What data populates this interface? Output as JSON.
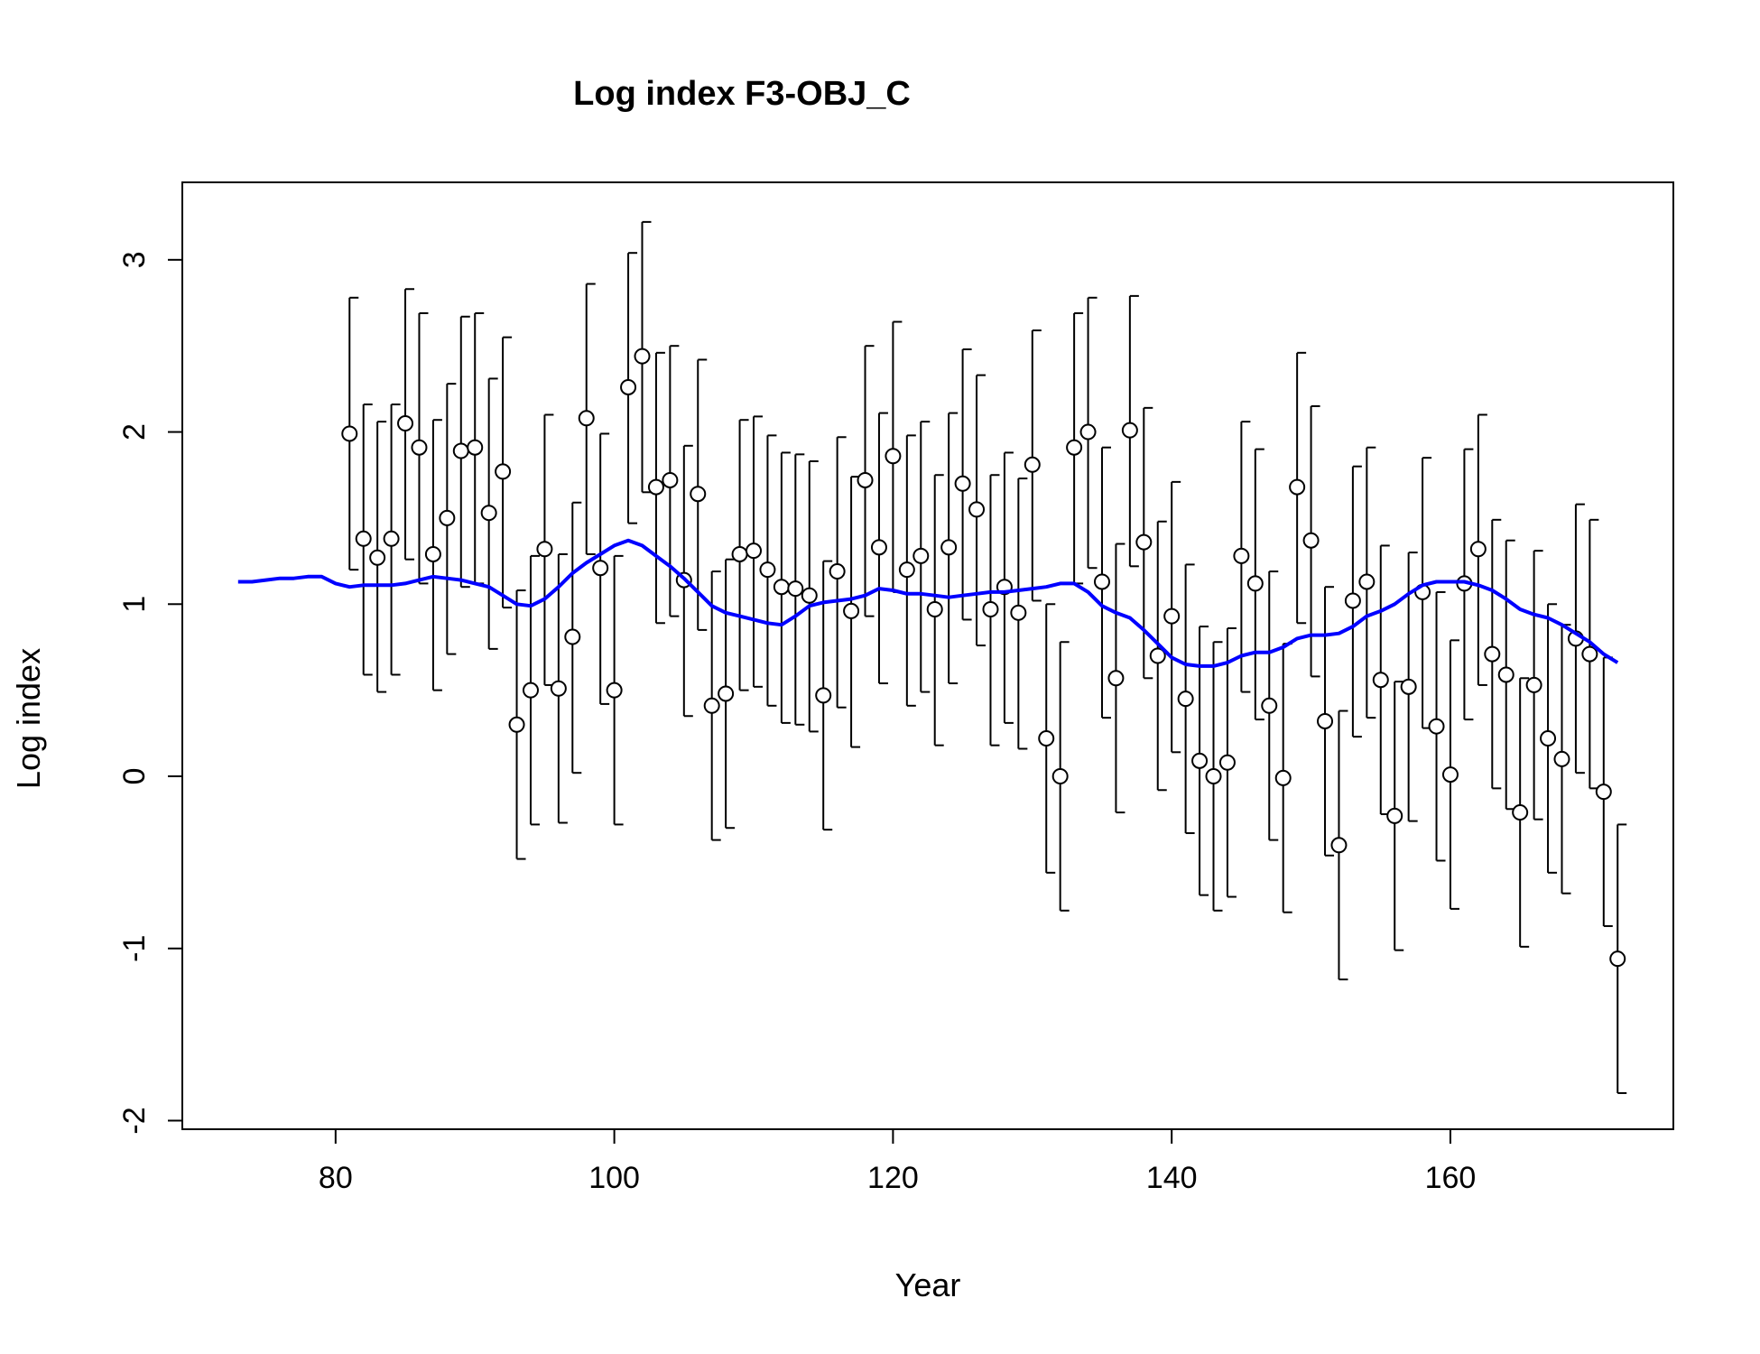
{
  "chart_data": {
    "type": "scatter",
    "title": "Log index F3-OBJ_C",
    "xlabel": "Year",
    "ylabel": "Log index",
    "xlim": [
      69,
      176
    ],
    "ylim": [
      -2.05,
      3.45
    ],
    "xticks": [
      80,
      100,
      120,
      140,
      160
    ],
    "yticks": [
      -2,
      -1,
      0,
      1,
      2,
      3
    ],
    "grid": false,
    "colors": {
      "points": "#000000",
      "fit": "#0000ff"
    },
    "points": [
      {
        "x": 81,
        "y": 1.99,
        "lo": 1.2,
        "hi": 2.78
      },
      {
        "x": 82,
        "y": 1.38,
        "lo": 0.59,
        "hi": 2.16
      },
      {
        "x": 83,
        "y": 1.27,
        "lo": 0.49,
        "hi": 2.06
      },
      {
        "x": 84,
        "y": 1.38,
        "lo": 0.59,
        "hi": 2.16
      },
      {
        "x": 85,
        "y": 2.05,
        "lo": 1.26,
        "hi": 2.83
      },
      {
        "x": 86,
        "y": 1.91,
        "lo": 1.12,
        "hi": 2.69
      },
      {
        "x": 87,
        "y": 1.29,
        "lo": 0.5,
        "hi": 2.07
      },
      {
        "x": 88,
        "y": 1.5,
        "lo": 0.71,
        "hi": 2.28
      },
      {
        "x": 89,
        "y": 1.89,
        "lo": 1.1,
        "hi": 2.67
      },
      {
        "x": 90,
        "y": 1.91,
        "lo": 1.12,
        "hi": 2.69
      },
      {
        "x": 91,
        "y": 1.53,
        "lo": 0.74,
        "hi": 2.31
      },
      {
        "x": 92,
        "y": 1.77,
        "lo": 0.98,
        "hi": 2.55
      },
      {
        "x": 93,
        "y": 0.3,
        "lo": -0.48,
        "hi": 1.08
      },
      {
        "x": 94,
        "y": 0.5,
        "lo": -0.28,
        "hi": 1.28
      },
      {
        "x": 95,
        "y": 1.32,
        "lo": 0.53,
        "hi": 2.1
      },
      {
        "x": 96,
        "y": 0.51,
        "lo": -0.27,
        "hi": 1.29
      },
      {
        "x": 97,
        "y": 0.81,
        "lo": 0.02,
        "hi": 1.59
      },
      {
        "x": 98,
        "y": 2.08,
        "lo": 1.29,
        "hi": 2.86
      },
      {
        "x": 99,
        "y": 1.21,
        "lo": 0.42,
        "hi": 1.99
      },
      {
        "x": 100,
        "y": 0.5,
        "lo": -0.28,
        "hi": 1.28
      },
      {
        "x": 101,
        "y": 2.26,
        "lo": 1.47,
        "hi": 3.04
      },
      {
        "x": 102,
        "y": 2.44,
        "lo": 1.65,
        "hi": 3.22
      },
      {
        "x": 103,
        "y": 1.68,
        "lo": 0.89,
        "hi": 2.46
      },
      {
        "x": 104,
        "y": 1.72,
        "lo": 0.93,
        "hi": 2.5
      },
      {
        "x": 105,
        "y": 1.14,
        "lo": 0.35,
        "hi": 1.92
      },
      {
        "x": 106,
        "y": 1.64,
        "lo": 0.85,
        "hi": 2.42
      },
      {
        "x": 107,
        "y": 0.41,
        "lo": -0.37,
        "hi": 1.19
      },
      {
        "x": 108,
        "y": 0.48,
        "lo": -0.3,
        "hi": 1.26
      },
      {
        "x": 109,
        "y": 1.29,
        "lo": 0.5,
        "hi": 2.07
      },
      {
        "x": 110,
        "y": 1.31,
        "lo": 0.52,
        "hi": 2.09
      },
      {
        "x": 111,
        "y": 1.2,
        "lo": 0.41,
        "hi": 1.98
      },
      {
        "x": 112,
        "y": 1.1,
        "lo": 0.31,
        "hi": 1.88
      },
      {
        "x": 113,
        "y": 1.09,
        "lo": 0.3,
        "hi": 1.87
      },
      {
        "x": 114,
        "y": 1.05,
        "lo": 0.26,
        "hi": 1.83
      },
      {
        "x": 115,
        "y": 0.47,
        "lo": -0.31,
        "hi": 1.25
      },
      {
        "x": 116,
        "y": 1.19,
        "lo": 0.4,
        "hi": 1.97
      },
      {
        "x": 117,
        "y": 0.96,
        "lo": 0.17,
        "hi": 1.74
      },
      {
        "x": 118,
        "y": 1.72,
        "lo": 0.93,
        "hi": 2.5
      },
      {
        "x": 119,
        "y": 1.33,
        "lo": 0.54,
        "hi": 2.11
      },
      {
        "x": 120,
        "y": 1.86,
        "lo": 1.07,
        "hi": 2.64
      },
      {
        "x": 121,
        "y": 1.2,
        "lo": 0.41,
        "hi": 1.98
      },
      {
        "x": 122,
        "y": 1.28,
        "lo": 0.49,
        "hi": 2.06
      },
      {
        "x": 123,
        "y": 0.97,
        "lo": 0.18,
        "hi": 1.75
      },
      {
        "x": 124,
        "y": 1.33,
        "lo": 0.54,
        "hi": 2.11
      },
      {
        "x": 125,
        "y": 1.7,
        "lo": 0.91,
        "hi": 2.48
      },
      {
        "x": 126,
        "y": 1.55,
        "lo": 0.76,
        "hi": 2.33
      },
      {
        "x": 127,
        "y": 0.97,
        "lo": 0.18,
        "hi": 1.75
      },
      {
        "x": 128,
        "y": 1.1,
        "lo": 0.31,
        "hi": 1.88
      },
      {
        "x": 129,
        "y": 0.95,
        "lo": 0.16,
        "hi": 1.73
      },
      {
        "x": 130,
        "y": 1.81,
        "lo": 1.02,
        "hi": 2.59
      },
      {
        "x": 131,
        "y": 0.22,
        "lo": -0.56,
        "hi": 1.0
      },
      {
        "x": 132,
        "y": 0.0,
        "lo": -0.78,
        "hi": 0.78
      },
      {
        "x": 133,
        "y": 1.91,
        "lo": 1.12,
        "hi": 2.69
      },
      {
        "x": 134,
        "y": 2.0,
        "lo": 1.21,
        "hi": 2.78
      },
      {
        "x": 135,
        "y": 1.13,
        "lo": 0.34,
        "hi": 1.91
      },
      {
        "x": 136,
        "y": 0.57,
        "lo": -0.21,
        "hi": 1.35
      },
      {
        "x": 137,
        "y": 2.01,
        "lo": 1.22,
        "hi": 2.79
      },
      {
        "x": 138,
        "y": 1.36,
        "lo": 0.57,
        "hi": 2.14
      },
      {
        "x": 139,
        "y": 0.7,
        "lo": -0.08,
        "hi": 1.48
      },
      {
        "x": 140,
        "y": 0.93,
        "lo": 0.14,
        "hi": 1.71
      },
      {
        "x": 141,
        "y": 0.45,
        "lo": -0.33,
        "hi": 1.23
      },
      {
        "x": 142,
        "y": 0.09,
        "lo": -0.69,
        "hi": 0.87
      },
      {
        "x": 143,
        "y": 0.0,
        "lo": -0.78,
        "hi": 0.78
      },
      {
        "x": 144,
        "y": 0.08,
        "lo": -0.7,
        "hi": 0.86
      },
      {
        "x": 145,
        "y": 1.28,
        "lo": 0.49,
        "hi": 2.06
      },
      {
        "x": 146,
        "y": 1.12,
        "lo": 0.33,
        "hi": 1.9
      },
      {
        "x": 147,
        "y": 0.41,
        "lo": -0.37,
        "hi": 1.19
      },
      {
        "x": 148,
        "y": -0.01,
        "lo": -0.79,
        "hi": 0.77
      },
      {
        "x": 149,
        "y": 1.68,
        "lo": 0.89,
        "hi": 2.46
      },
      {
        "x": 150,
        "y": 1.37,
        "lo": 0.58,
        "hi": 2.15
      },
      {
        "x": 151,
        "y": 0.32,
        "lo": -0.46,
        "hi": 1.1
      },
      {
        "x": 152,
        "y": -0.4,
        "lo": -1.18,
        "hi": 0.38
      },
      {
        "x": 153,
        "y": 1.02,
        "lo": 0.23,
        "hi": 1.8
      },
      {
        "x": 154,
        "y": 1.13,
        "lo": 0.34,
        "hi": 1.91
      },
      {
        "x": 155,
        "y": 0.56,
        "lo": -0.22,
        "hi": 1.34
      },
      {
        "x": 156,
        "y": -0.23,
        "lo": -1.01,
        "hi": 0.55
      },
      {
        "x": 157,
        "y": 0.52,
        "lo": -0.26,
        "hi": 1.3
      },
      {
        "x": 158,
        "y": 1.07,
        "lo": 0.28,
        "hi": 1.85
      },
      {
        "x": 159,
        "y": 0.29,
        "lo": -0.49,
        "hi": 1.07
      },
      {
        "x": 160,
        "y": 0.01,
        "lo": -0.77,
        "hi": 0.79
      },
      {
        "x": 161,
        "y": 1.12,
        "lo": 0.33,
        "hi": 1.9
      },
      {
        "x": 162,
        "y": 1.32,
        "lo": 0.53,
        "hi": 2.1
      },
      {
        "x": 163,
        "y": 0.71,
        "lo": -0.07,
        "hi": 1.49
      },
      {
        "x": 164,
        "y": 0.59,
        "lo": -0.19,
        "hi": 1.37
      },
      {
        "x": 165,
        "y": -0.21,
        "lo": -0.99,
        "hi": 0.57
      },
      {
        "x": 166,
        "y": 0.53,
        "lo": -0.25,
        "hi": 1.31
      },
      {
        "x": 167,
        "y": 0.22,
        "lo": -0.56,
        "hi": 1.0
      },
      {
        "x": 168,
        "y": 0.1,
        "lo": -0.68,
        "hi": 0.88
      },
      {
        "x": 169,
        "y": 0.8,
        "lo": 0.02,
        "hi": 1.58
      },
      {
        "x": 170,
        "y": 0.71,
        "lo": -0.07,
        "hi": 1.49
      },
      {
        "x": 171,
        "y": -0.09,
        "lo": -0.87,
        "hi": 0.69
      },
      {
        "x": 172,
        "y": -1.06,
        "lo": -1.84,
        "hi": -0.28
      }
    ],
    "fit_line": {
      "x": [
        73,
        74,
        75,
        76,
        77,
        78,
        79,
        80,
        81,
        82,
        83,
        84,
        85,
        86,
        87,
        88,
        89,
        90,
        91,
        92,
        93,
        94,
        95,
        96,
        97,
        98,
        99,
        100,
        101,
        102,
        103,
        104,
        105,
        106,
        107,
        108,
        109,
        110,
        111,
        112,
        113,
        114,
        115,
        116,
        117,
        118,
        119,
        120,
        121,
        122,
        123,
        124,
        125,
        126,
        127,
        128,
        129,
        130,
        131,
        132,
        133,
        134,
        135,
        136,
        137,
        138,
        139,
        140,
        141,
        142,
        143,
        144,
        145,
        146,
        147,
        148,
        149,
        150,
        151,
        152,
        153,
        154,
        155,
        156,
        157,
        158,
        159,
        160,
        161,
        162,
        163,
        164,
        165,
        166,
        167,
        168,
        169,
        170,
        171,
        172
      ],
      "y": [
        1.13,
        1.13,
        1.14,
        1.15,
        1.15,
        1.16,
        1.16,
        1.12,
        1.1,
        1.11,
        1.11,
        1.11,
        1.12,
        1.14,
        1.16,
        1.15,
        1.14,
        1.12,
        1.1,
        1.05,
        1.0,
        0.99,
        1.03,
        1.1,
        1.18,
        1.24,
        1.29,
        1.34,
        1.37,
        1.34,
        1.28,
        1.22,
        1.15,
        1.07,
        0.99,
        0.95,
        0.93,
        0.91,
        0.89,
        0.88,
        0.93,
        0.99,
        1.01,
        1.02,
        1.03,
        1.05,
        1.09,
        1.08,
        1.06,
        1.06,
        1.05,
        1.04,
        1.05,
        1.06,
        1.07,
        1.07,
        1.08,
        1.09,
        1.1,
        1.12,
        1.12,
        1.07,
        0.99,
        0.95,
        0.92,
        0.85,
        0.77,
        0.69,
        0.65,
        0.64,
        0.64,
        0.66,
        0.7,
        0.72,
        0.72,
        0.75,
        0.8,
        0.82,
        0.82,
        0.83,
        0.87,
        0.93,
        0.96,
        1.0,
        1.06,
        1.11,
        1.13,
        1.13,
        1.13,
        1.11,
        1.08,
        1.03,
        0.97,
        0.94,
        0.92,
        0.88,
        0.83,
        0.78,
        0.71,
        0.66
      ]
    }
  }
}
